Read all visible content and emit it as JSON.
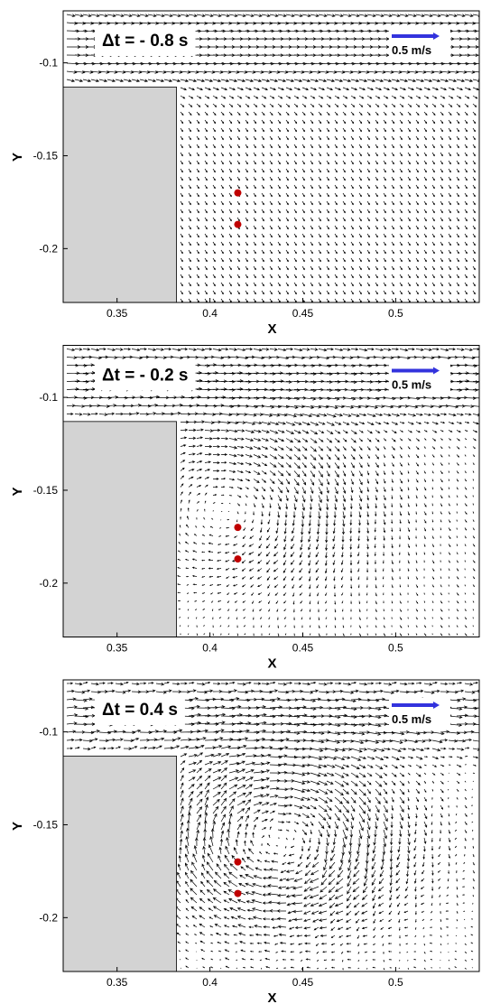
{
  "chart_data": [
    {
      "type": "quiver",
      "title": "Δt = - 0.8 s",
      "x_label": "X",
      "y_label": "Y",
      "xlim": [
        0.321,
        0.545
      ],
      "ylim": [
        -0.229,
        -0.072
      ],
      "xticks": [
        0.35,
        0.4,
        0.45,
        0.5
      ],
      "yticks": [
        -0.2,
        -0.15,
        -0.1
      ],
      "obstacle": {
        "x": [
          0.321,
          0.382
        ],
        "y": [
          -0.229,
          -0.113
        ],
        "color": "#d3d3d3"
      },
      "points": {
        "x": [
          0.415,
          0.415
        ],
        "y": [
          -0.17,
          -0.187
        ],
        "color": "#c00000"
      },
      "reference": {
        "label": "0.5 m/s",
        "color": "#3333dd"
      }
    },
    {
      "type": "quiver",
      "title": "Δt = - 0.2 s",
      "x_label": "X",
      "y_label": "Y",
      "xlim": [
        0.321,
        0.545
      ],
      "ylim": [
        -0.229,
        -0.072
      ],
      "xticks": [
        0.35,
        0.4,
        0.45,
        0.5
      ],
      "yticks": [
        -0.2,
        -0.15,
        -0.1
      ],
      "obstacle": {
        "x": [
          0.321,
          0.382
        ],
        "y": [
          -0.229,
          -0.113
        ],
        "color": "#d3d3d3"
      },
      "points": {
        "x": [
          0.415,
          0.415
        ],
        "y": [
          -0.17,
          -0.187
        ],
        "color": "#c00000"
      },
      "reference": {
        "label": "0.5 m/s",
        "color": "#3333dd"
      }
    },
    {
      "type": "quiver",
      "title": "Δt = 0.4 s",
      "x_label": "X",
      "y_label": "Y",
      "xlim": [
        0.321,
        0.545
      ],
      "ylim": [
        -0.229,
        -0.072
      ],
      "xticks": [
        0.35,
        0.4,
        0.45,
        0.5
      ],
      "yticks": [
        -0.2,
        -0.15,
        -0.1
      ],
      "obstacle": {
        "x": [
          0.321,
          0.382
        ],
        "y": [
          -0.229,
          -0.113
        ],
        "color": "#d3d3d3"
      },
      "points": {
        "x": [
          0.415,
          0.415
        ],
        "y": [
          -0.17,
          -0.187
        ],
        "color": "#c00000"
      },
      "reference": {
        "label": "0.5 m/s",
        "color": "#3333dd"
      }
    }
  ]
}
